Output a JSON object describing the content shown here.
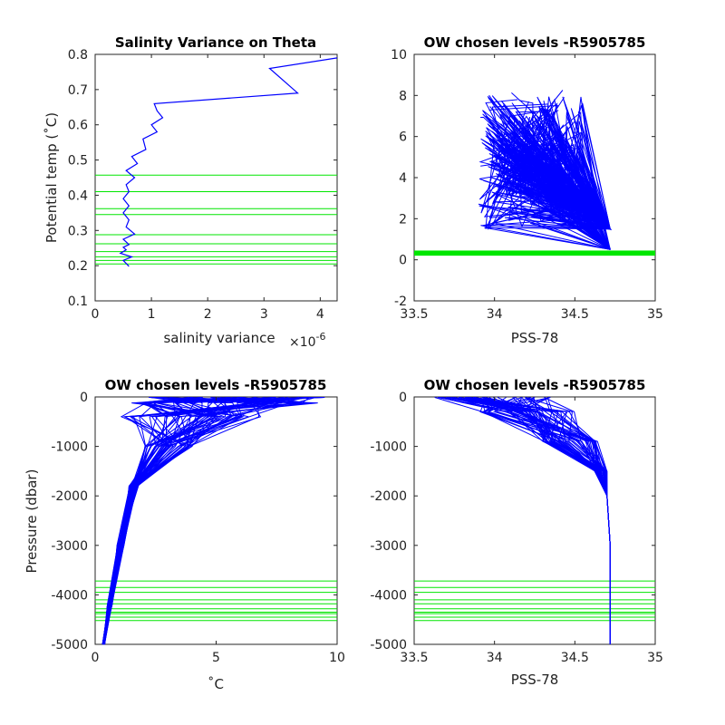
{
  "colors": {
    "profile": "#0000ff",
    "levels": "#00e600",
    "axis": "#262626"
  },
  "chart_data": [
    {
      "type": "line",
      "title": "Salinity Variance on Theta",
      "xlabel": "salinity variance",
      "x_exponent": "×10",
      "x_exponent_power": "-6",
      "ylabel": "Potential temp (˚C)",
      "xlim": [
        0,
        4.3e-06
      ],
      "ylim": [
        0.1,
        0.8
      ],
      "xticks": [
        0,
        1,
        2,
        3,
        4
      ],
      "xtick_labels": [
        "0",
        "1",
        "2",
        "3",
        "4"
      ],
      "yticks": [
        0.1,
        0.2,
        0.3,
        0.4,
        0.5,
        0.6,
        0.7,
        0.8
      ],
      "ytick_labels": [
        "0.1",
        "0.2",
        "0.3",
        "0.4",
        "0.5",
        "0.6",
        "0.7",
        "0.8"
      ],
      "series": [
        {
          "x": [
            6e-07,
            5e-07,
            6.5e-07,
            4.5e-07,
            5.5e-07,
            5e-07,
            6e-07,
            5e-07,
            7e-07,
            5.5e-07,
            6e-07,
            5e-07,
            6e-07,
            5e-07,
            6e-07,
            5.5e-07,
            7e-07,
            5.5e-07,
            7.5e-07,
            6.5e-07,
            9e-07,
            8.5e-07,
            1.1e-06,
            1e-06,
            1.2e-06,
            1.1e-06,
            1.05e-06,
            3.6e-06,
            3.1e-06,
            4.3e-06
          ],
          "y": [
            0.198,
            0.215,
            0.225,
            0.235,
            0.245,
            0.252,
            0.26,
            0.275,
            0.29,
            0.31,
            0.33,
            0.35,
            0.37,
            0.39,
            0.41,
            0.43,
            0.45,
            0.47,
            0.49,
            0.51,
            0.53,
            0.56,
            0.58,
            0.6,
            0.62,
            0.64,
            0.66,
            0.69,
            0.76,
            0.79
          ]
        }
      ],
      "levels": [
        0.205,
        0.215,
        0.225,
        0.24,
        0.262,
        0.288,
        0.345,
        0.362,
        0.41,
        0.457
      ]
    },
    {
      "type": "line",
      "title": "OW chosen levels -R5905785",
      "xlabel": "PSS-78",
      "ylabel": "",
      "xlim": [
        33.5,
        35
      ],
      "ylim": [
        -2,
        10
      ],
      "xticks": [
        33.5,
        34,
        34.5,
        35
      ],
      "xtick_labels": [
        "33.5",
        "34",
        "34.5",
        "35"
      ],
      "yticks": [
        -2,
        0,
        2,
        4,
        6,
        8,
        10
      ],
      "ytick_labels": [
        "-2",
        "0",
        "2",
        "4",
        "6",
        "8",
        "10"
      ],
      "levels_band": [
        0.2,
        0.45
      ],
      "profiles": 60,
      "seed": 11
    },
    {
      "type": "line",
      "title": "OW chosen levels -R5905785",
      "xlabel": "˚C",
      "ylabel": "Pressure (dbar)",
      "xlim": [
        0,
        10
      ],
      "ylim": [
        -5000,
        0
      ],
      "xticks": [
        0,
        5,
        10
      ],
      "xtick_labels": [
        "0",
        "5",
        "10"
      ],
      "yticks": [
        -5000,
        -4000,
        -3000,
        -2000,
        -1000,
        0
      ],
      "ytick_labels": [
        "-5000",
        "-4000",
        "-3000",
        "-2000",
        "-1000",
        "0"
      ],
      "levels": [
        -3720,
        -3850,
        -3950,
        -4100,
        -4180,
        -4280,
        -4350,
        -4380,
        -4450,
        -4520
      ],
      "profiles": 60,
      "seed": 23
    },
    {
      "type": "line",
      "title": "OW chosen levels -R5905785",
      "xlabel": "PSS-78",
      "ylabel": "",
      "xlim": [
        33.5,
        35
      ],
      "ylim": [
        -5000,
        0
      ],
      "xticks": [
        33.5,
        34,
        34.5,
        35
      ],
      "xtick_labels": [
        "33.5",
        "34",
        "34.5",
        "35"
      ],
      "yticks": [
        -5000,
        -4000,
        -3000,
        -2000,
        -1000,
        0
      ],
      "ytick_labels": [
        "-5000",
        "-4000",
        "-3000",
        "-2000",
        "-1000",
        "0"
      ],
      "levels": [
        -3720,
        -3850,
        -3950,
        -4100,
        -4180,
        -4280,
        -4350,
        -4380,
        -4450,
        -4520
      ],
      "profiles": 60,
      "seed": 37
    }
  ]
}
